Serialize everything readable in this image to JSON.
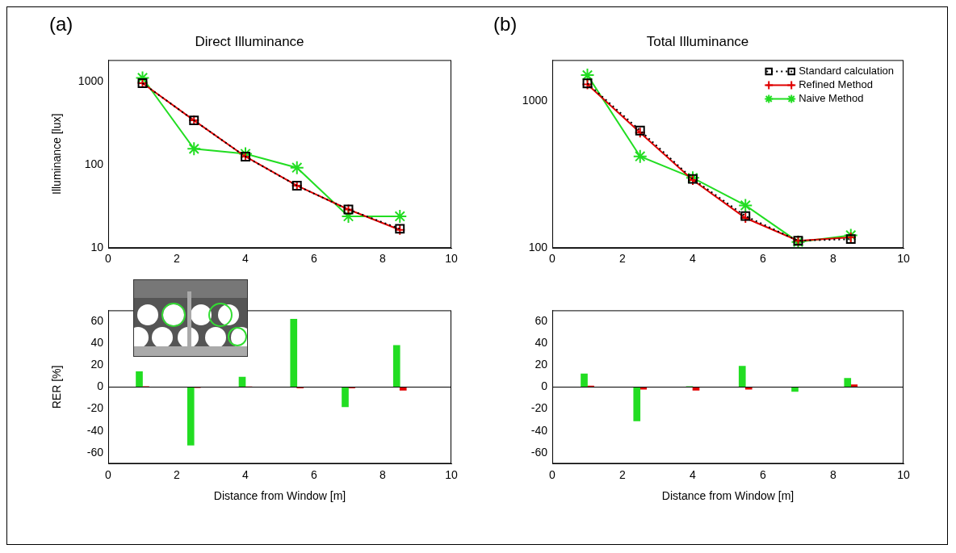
{
  "chart_data": [
    {
      "panel_label": "(a)",
      "type": "line",
      "title": "Direct Illuminance",
      "y_label": "Illuminance [lux]",
      "log": "y",
      "grid": false,
      "xlim": [
        0,
        10
      ],
      "xticks": [
        0,
        2,
        4,
        6,
        8,
        10
      ],
      "ylim": [
        10,
        1800
      ],
      "yticks": [
        10,
        100,
        1000
      ],
      "x": [
        1,
        2.5,
        4,
        5.5,
        7,
        8.5
      ],
      "series": [
        {
          "color": "#000000",
          "marker": "square",
          "line_style": "dotted",
          "values": [
            950,
            340,
            125,
            56,
            29,
            17
          ]
        },
        {
          "color": "#e00000",
          "marker": "plus",
          "line_style": "solid",
          "values": [
            950,
            340,
            125,
            56,
            29,
            16.5
          ]
        },
        {
          "color": "#22dd22",
          "marker": "star",
          "line_style": "solid",
          "values": [
            1100,
            155,
            135,
            92,
            24,
            24
          ]
        }
      ]
    },
    {
      "type": "bar",
      "y_label": "RER [%]",
      "x_label": "Distance from Window [m]",
      "grid": false,
      "xlim": [
        0,
        10
      ],
      "xticks": [
        0,
        2,
        4,
        6,
        8,
        10
      ],
      "ylim": [
        -70,
        70
      ],
      "yticks": [
        -60,
        -40,
        -20,
        0,
        20,
        40,
        60
      ],
      "x": [
        1,
        2.5,
        4,
        5.5,
        7,
        8.5
      ],
      "series": [
        {
          "color": "#22dd22",
          "values": [
            14,
            -53,
            9,
            62,
            -18,
            38
          ]
        },
        {
          "color": "#e00000",
          "values": [
            0.5,
            -0.5,
            0.3,
            -1,
            -1,
            -3
          ]
        }
      ]
    },
    {
      "panel_label": "(b)",
      "type": "line",
      "title": "Total Illuminance",
      "log": "y",
      "grid": false,
      "legend": "upper right",
      "xlim": [
        0,
        10
      ],
      "xticks": [
        0,
        2,
        4,
        6,
        8,
        10
      ],
      "ylim": [
        100,
        1900
      ],
      "yticks": [
        100,
        1000
      ],
      "x": [
        1,
        2.5,
        4,
        5.5,
        7,
        8.5
      ],
      "series": [
        {
          "name": "Standard calculation",
          "color": "#000000",
          "marker": "square",
          "line_style": "dotted",
          "values": [
            1320,
            630,
            295,
            165,
            112,
            115
          ]
        },
        {
          "name": "Refined Method",
          "color": "#e00000",
          "marker": "plus",
          "line_style": "solid",
          "values": [
            1300,
            610,
            290,
            160,
            112,
            118
          ]
        },
        {
          "name": "Naive Method",
          "color": "#22dd22",
          "marker": "star",
          "line_style": "solid",
          "values": [
            1500,
            420,
            300,
            195,
            110,
            122
          ]
        }
      ]
    },
    {
      "type": "bar",
      "x_label": "Distance from Window [m]",
      "grid": false,
      "xlim": [
        0,
        10
      ],
      "xticks": [
        0,
        2,
        4,
        6,
        8,
        10
      ],
      "ylim": [
        -70,
        70
      ],
      "yticks": [
        -60,
        -40,
        -20,
        0,
        20,
        40,
        60
      ],
      "x": [
        1,
        2.5,
        4,
        5.5,
        7,
        8.5
      ],
      "series": [
        {
          "color": "#22dd22",
          "values": [
            12,
            -31,
            0.5,
            19,
            -4,
            8
          ]
        },
        {
          "color": "#e00000",
          "values": [
            1,
            -2,
            -3,
            -2,
            0,
            2
          ]
        }
      ]
    }
  ]
}
